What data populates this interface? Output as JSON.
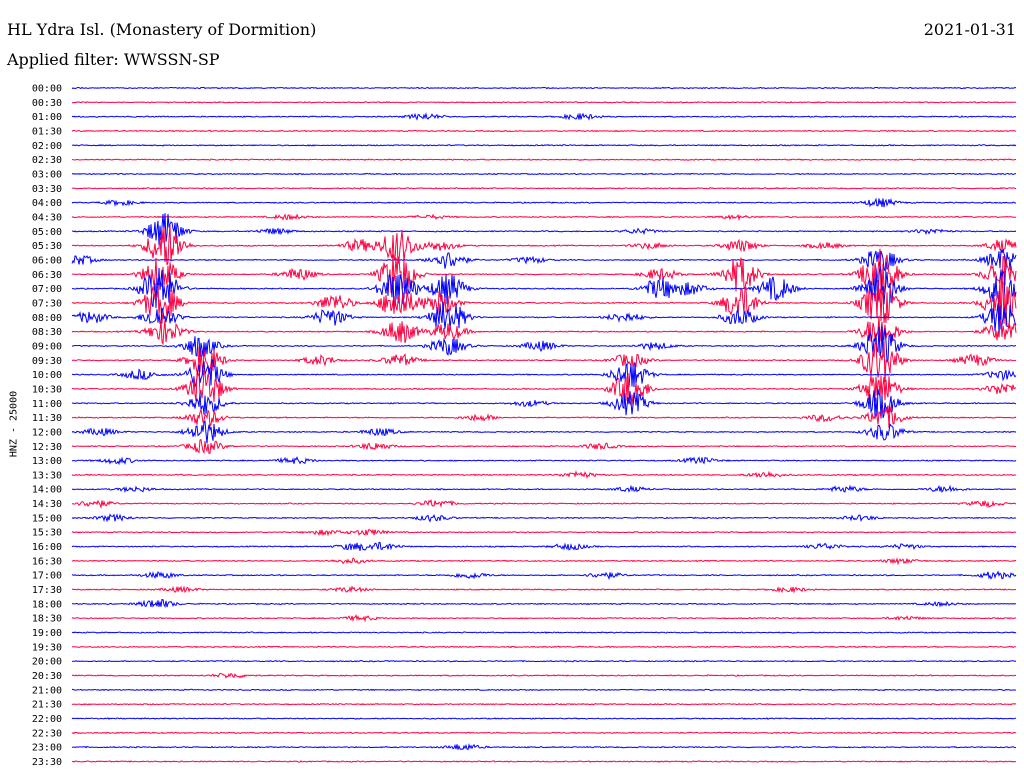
{
  "header": {
    "station": "HL Ydra Isl. (Monastery of Dormition)",
    "date": "2021-01-31",
    "filter": "Applied filter: WWSSN-SP"
  },
  "chart_data": {
    "type": "line",
    "title": "HL Ydra Isl. (Monastery of Dormition)",
    "ylabel": "HNZ - 25000",
    "row_labels": [
      "00:00",
      "00:30",
      "01:00",
      "01:30",
      "02:00",
      "02:30",
      "03:00",
      "03:30",
      "04:00",
      "04:30",
      "05:00",
      "05:30",
      "06:00",
      "06:30",
      "07:00",
      "07:30",
      "08:00",
      "08:30",
      "09:00",
      "09:30",
      "10:00",
      "10:30",
      "11:00",
      "11:30",
      "12:00",
      "12:30",
      "13:00",
      "13:30",
      "14:00",
      "14:30",
      "15:00",
      "15:30",
      "16:00",
      "16:30",
      "17:00",
      "17:30",
      "18:00",
      "18:30",
      "19:00",
      "19:30",
      "20:00",
      "20:30",
      "21:00",
      "21:30",
      "22:00",
      "22:30",
      "23:00",
      "23:30"
    ],
    "colors": {
      "even": "#0000ff",
      "odd": "#ff0040"
    },
    "grid": false,
    "legend": "none"
  }
}
